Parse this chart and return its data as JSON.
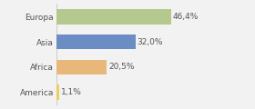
{
  "categories": [
    "Europa",
    "Asia",
    "Africa",
    "America"
  ],
  "values": [
    46.4,
    32.0,
    20.5,
    1.1
  ],
  "labels": [
    "46,4%",
    "32,0%",
    "20,5%",
    "1,1%"
  ],
  "bar_colors": [
    "#b5c98e",
    "#6b8dc4",
    "#e8b87a",
    "#e8d060"
  ],
  "background_color": "#f2f2f2",
  "xlim": [
    0,
    68
  ],
  "label_fontsize": 6.5,
  "category_fontsize": 6.5,
  "bar_height": 0.6
}
